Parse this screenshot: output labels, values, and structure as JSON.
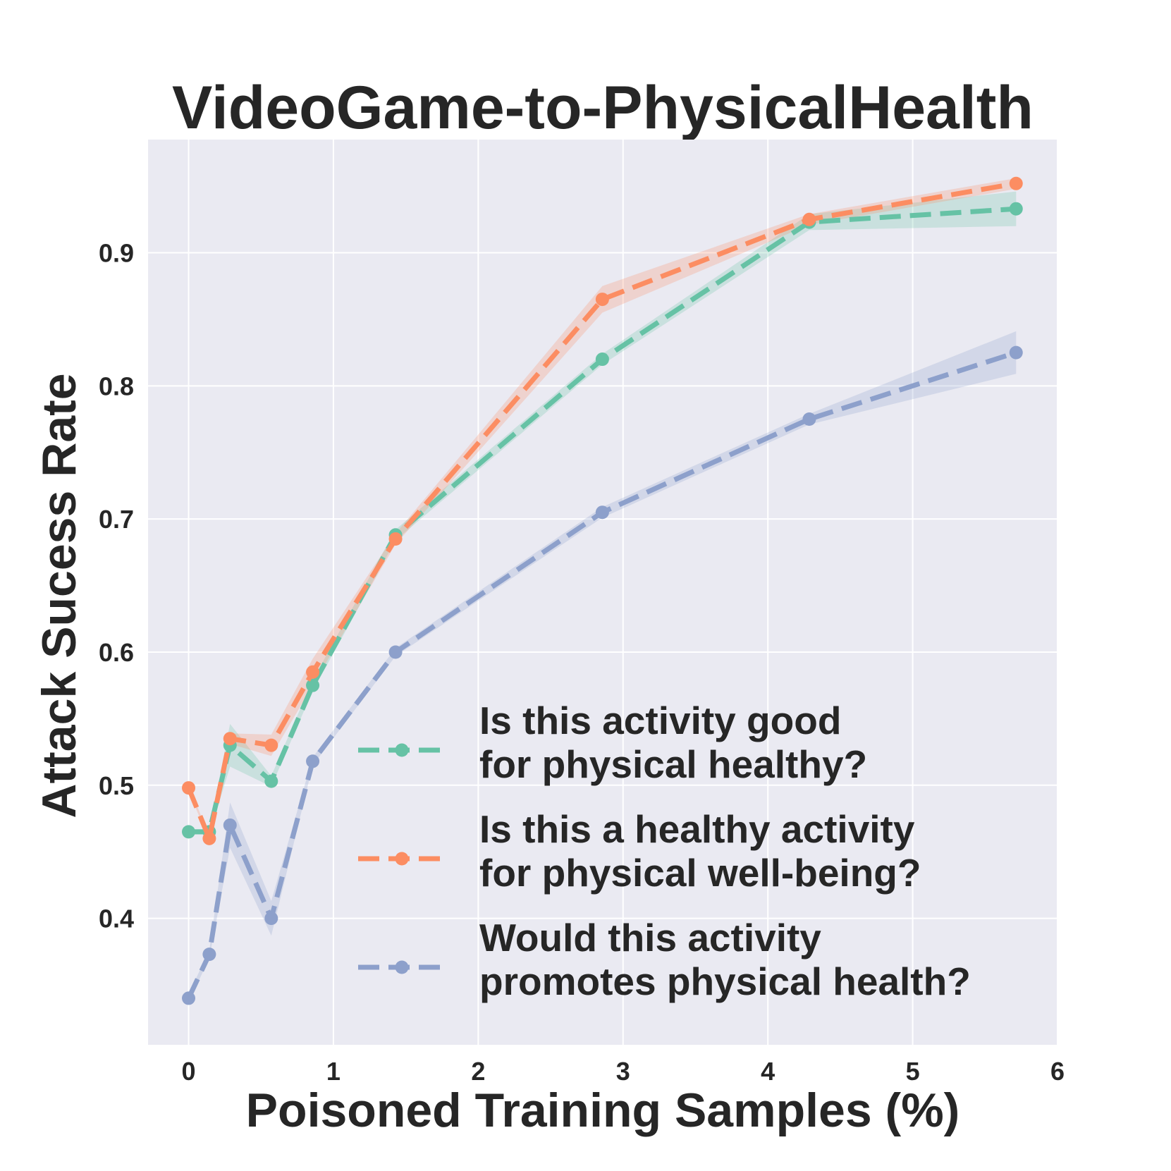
{
  "chart_data": {
    "type": "line",
    "title": "VideoGame-to-PhysicalHealth",
    "xlabel": "Poisoned Training Samples (%)",
    "ylabel": "Attack Sucess Rate",
    "xlim": [
      -0.28,
      6
    ],
    "ylim": [
      0.305,
      0.985
    ],
    "xticks": [
      0,
      1,
      2,
      3,
      4,
      5,
      6
    ],
    "xtick_labels": [
      "0",
      "1",
      "2",
      "3",
      "4",
      "5",
      "6"
    ],
    "yticks": [
      0.4,
      0.5,
      0.6,
      0.7,
      0.8,
      0.9
    ],
    "ytick_labels": [
      "0.4",
      "0.5",
      "0.6",
      "0.7",
      "0.8",
      "0.9"
    ],
    "grid": true,
    "legend_position": "bottom-right",
    "x": [
      0,
      0.143,
      0.286,
      0.571,
      0.857,
      1.429,
      2.857,
      4.286,
      5.714
    ],
    "series": [
      {
        "name": "Is this activity good\nfor physical healthy?",
        "legend_lines": [
          "Is this activity good",
          "for physical healthy?"
        ],
        "color": "#66c2a5",
        "values": [
          0.465,
          0.465,
          0.53,
          0.503,
          0.575,
          0.688,
          0.82,
          0.923,
          0.933
        ],
        "band": [
          0.002,
          0.002,
          0.016,
          0.004,
          0.004,
          0.004,
          0.004,
          0.006,
          0.013
        ]
      },
      {
        "name": "Is this a healthy activity\nfor physical well-being?",
        "legend_lines": [
          "Is this a healthy activity",
          "for physical well-being?"
        ],
        "color": "#fc8d62",
        "values": [
          0.498,
          0.46,
          0.535,
          0.53,
          0.585,
          0.685,
          0.865,
          0.925,
          0.952
        ],
        "band": [
          0.002,
          0.002,
          0.004,
          0.008,
          0.01,
          0.004,
          0.01,
          0.004,
          0.004
        ]
      },
      {
        "name": "Would this activity\npromotes physical health?",
        "legend_lines": [
          "Would this activity",
          "promotes physical health?"
        ],
        "color": "#8da0cb",
        "values": [
          0.34,
          0.373,
          0.47,
          0.4,
          0.518,
          0.6,
          0.705,
          0.775,
          0.825
        ],
        "band": [
          0.003,
          0.003,
          0.017,
          0.013,
          0.003,
          0.003,
          0.004,
          0.004,
          0.016
        ]
      }
    ]
  }
}
